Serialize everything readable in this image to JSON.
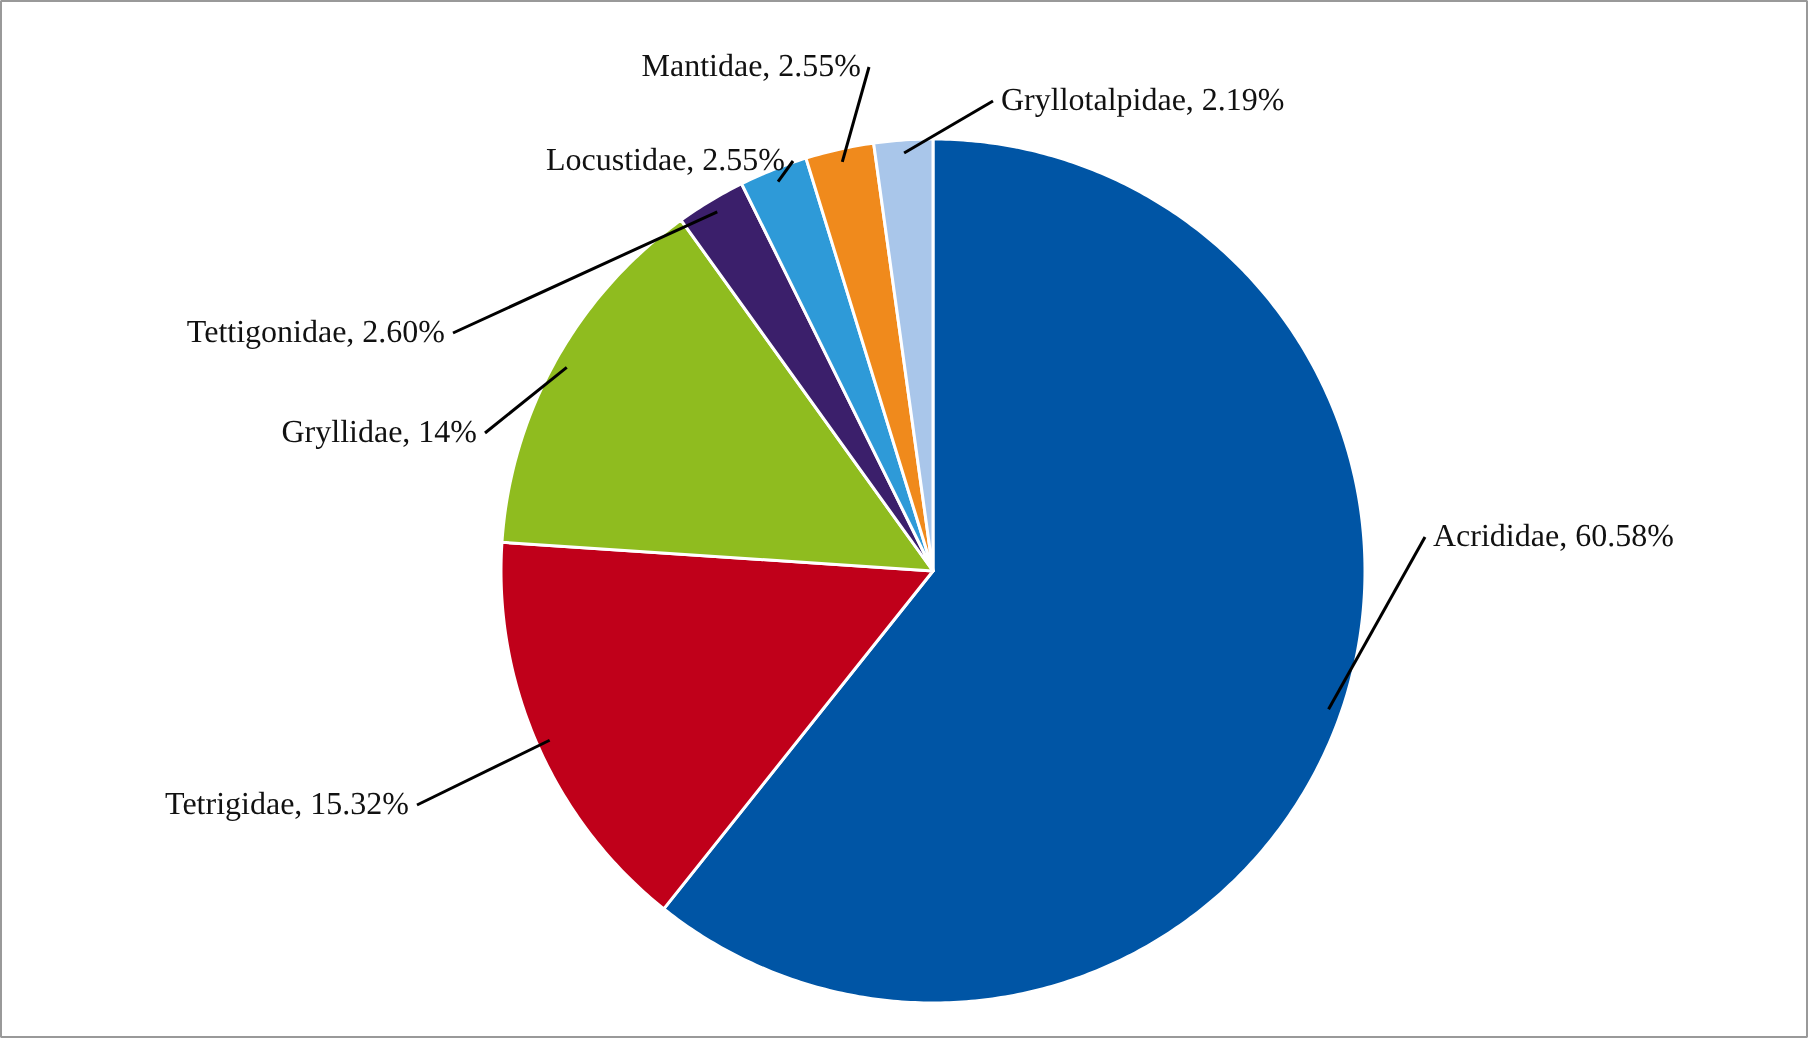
{
  "chart_data": {
    "type": "pie",
    "categories": [
      "Acrididae",
      "Tetrigidae",
      "Gryllidae",
      "Tettigonidae",
      "Locustidae",
      "Mantidae",
      "Gryllotalpidae"
    ],
    "values": [
      60.58,
      15.32,
      14,
      2.6,
      2.55,
      2.55,
      2.19
    ],
    "value_labels": [
      "60.58%",
      "15.32%",
      "14%",
      "2.60%",
      "2.55%",
      "2.55%",
      "2.19%"
    ],
    "colors": [
      "#0055a5",
      "#c0001a",
      "#8fbc1f",
      "#3b1f6b",
      "#2e9ad8",
      "#f08a1c",
      "#a9c6ea"
    ]
  }
}
